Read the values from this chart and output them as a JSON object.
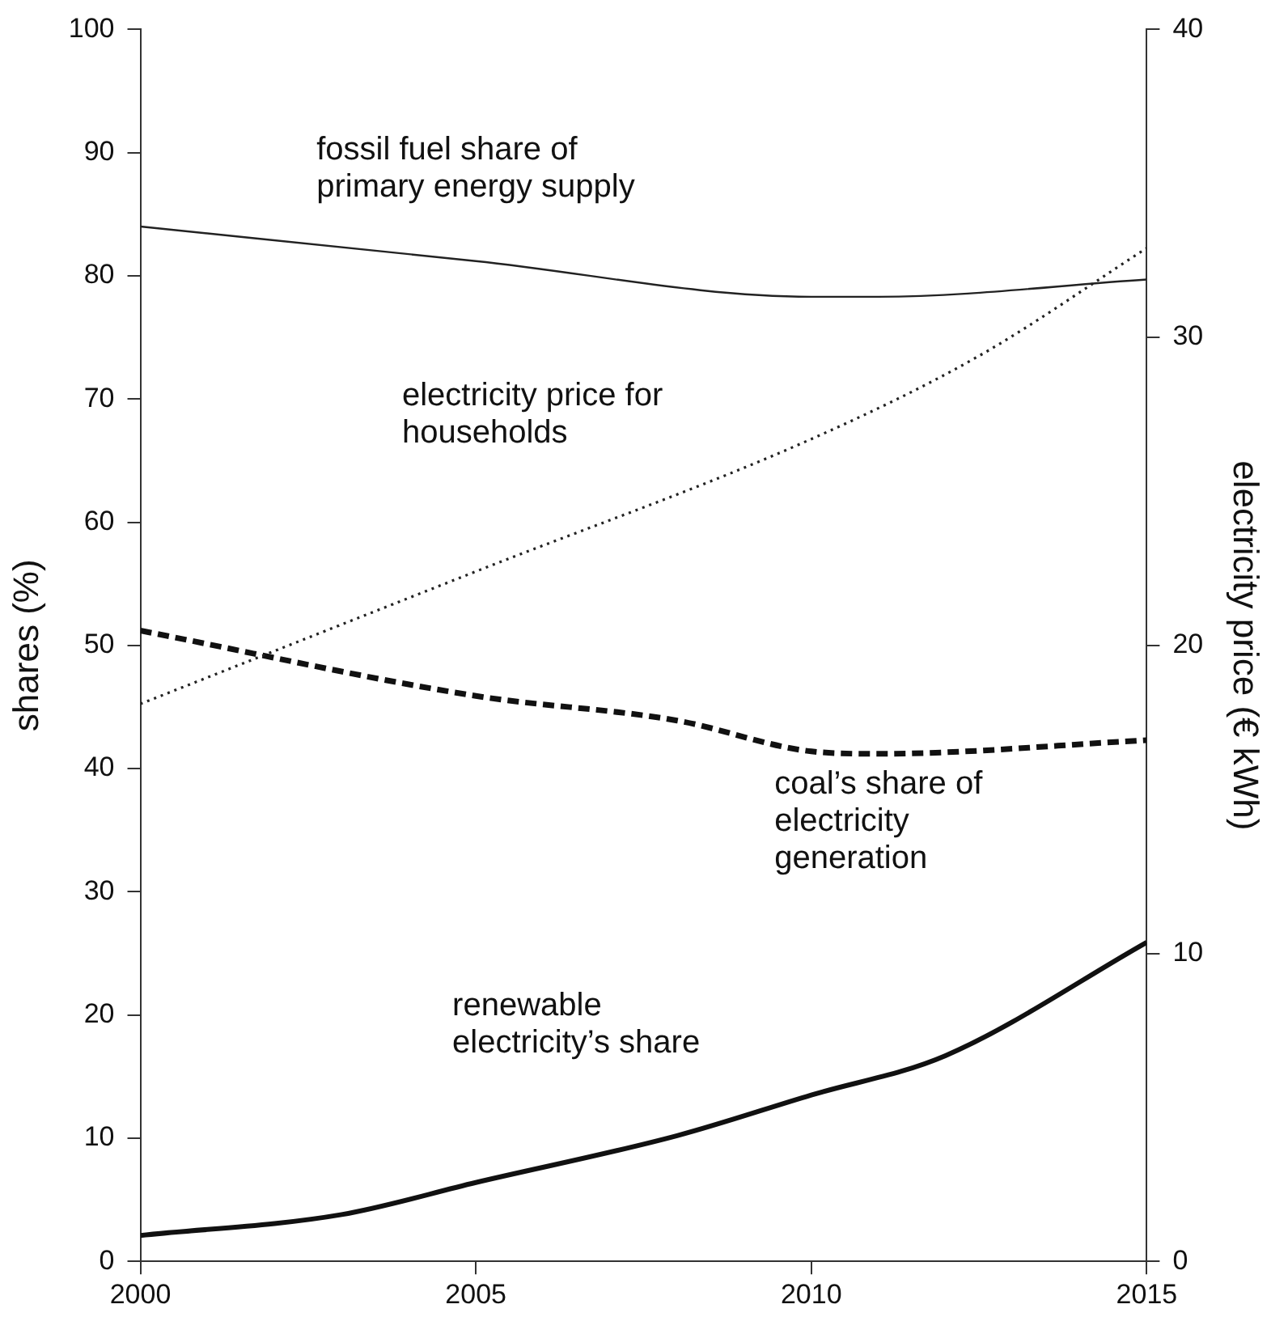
{
  "chart_data": {
    "type": "line",
    "ylabel": "shares (%)",
    "y2label": "electricity price (€ kWh)",
    "xlim": [
      2000,
      2015
    ],
    "xticks": [
      2000,
      2005,
      2010,
      2015
    ],
    "ylim": [
      0,
      100
    ],
    "yticks": [
      0,
      10,
      20,
      30,
      40,
      50,
      60,
      70,
      80,
      90,
      100
    ],
    "y2lim": [
      0,
      40
    ],
    "y2ticks": [
      0,
      10,
      20,
      30,
      40
    ],
    "grid": false,
    "legend": false,
    "marker": "none",
    "series": [
      {
        "name": "fossil fuel share of primary energy supply",
        "color": "#222222",
        "line_style": "solid",
        "x": [
          2000,
          2005,
          2010,
          2011,
          2015
        ],
        "values": [
          84.0,
          81.2,
          78.3,
          78.3,
          79.7
        ]
      },
      {
        "name": "electricity price for households",
        "color": "#222222",
        "line_style": "dotted",
        "axis": "y2",
        "x": [
          2000,
          2005,
          2010,
          2012.5,
          2015
        ],
        "values": [
          18.1,
          22.4,
          26.7,
          29.4,
          32.9
        ]
      },
      {
        "name": "coal’s share of electricity generation",
        "color": "#111111",
        "line_style": "dashed",
        "x": [
          2000,
          2005,
          2008,
          2010,
          2011,
          2015
        ],
        "values": [
          51.2,
          45.9,
          43.9,
          41.4,
          41.2,
          42.3
        ]
      },
      {
        "name": "renewable electricity’s share",
        "color": "#111111",
        "line_style": "solid",
        "x": [
          2000,
          2003,
          2005,
          2008,
          2010,
          2012,
          2015
        ],
        "values": [
          2.1,
          3.8,
          6.4,
          10.2,
          13.5,
          16.7,
          25.9
        ]
      }
    ]
  }
}
